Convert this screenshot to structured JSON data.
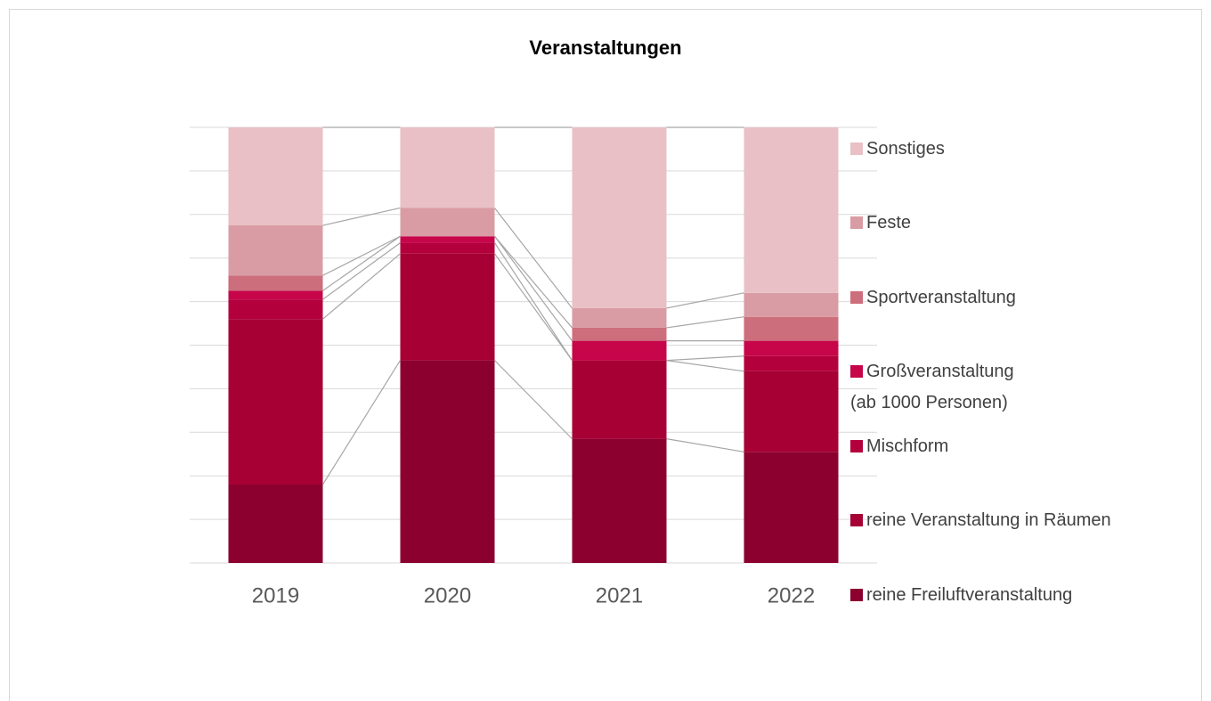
{
  "chart_data": {
    "type": "stacked_bar",
    "title": "Veranstaltungen",
    "categories": [
      "2019",
      "2020",
      "2021",
      "2022"
    ],
    "series": [
      {
        "name": "reine Freiluftveranstaltung",
        "color": "#8c002f",
        "values": [
          18,
          46.5,
          28.5,
          25.5
        ]
      },
      {
        "name": "reine Veranstaltung in Räumen",
        "color": "#a60035",
        "values": [
          38,
          24.5,
          18,
          18.5
        ]
      },
      {
        "name": "Mischform",
        "color": "#b3003d",
        "values": [
          4.5,
          2.5,
          0,
          3.5
        ]
      },
      {
        "name": "Großveranstaltung\n(ab 1000 Personen)",
        "color": "#c7064a",
        "values": [
          2,
          1.5,
          4.5,
          3.5
        ]
      },
      {
        "name": "Sportveranstaltung",
        "color": "#cd6e7c",
        "values": [
          3.5,
          0,
          3,
          5.5
        ]
      },
      {
        "name": "Feste",
        "color": "#d99ca4",
        "values": [
          11.5,
          6.5,
          4.5,
          5.5
        ]
      },
      {
        "name": "Sonstiges",
        "color": "#e8c0c5",
        "values": [
          22.5,
          18.5,
          41.5,
          38
        ]
      }
    ],
    "ylim": [
      0,
      100
    ],
    "yticks": [
      0,
      10,
      20,
      30,
      40,
      50,
      60,
      70,
      80,
      90,
      100
    ],
    "grid": true,
    "legend": "right"
  }
}
